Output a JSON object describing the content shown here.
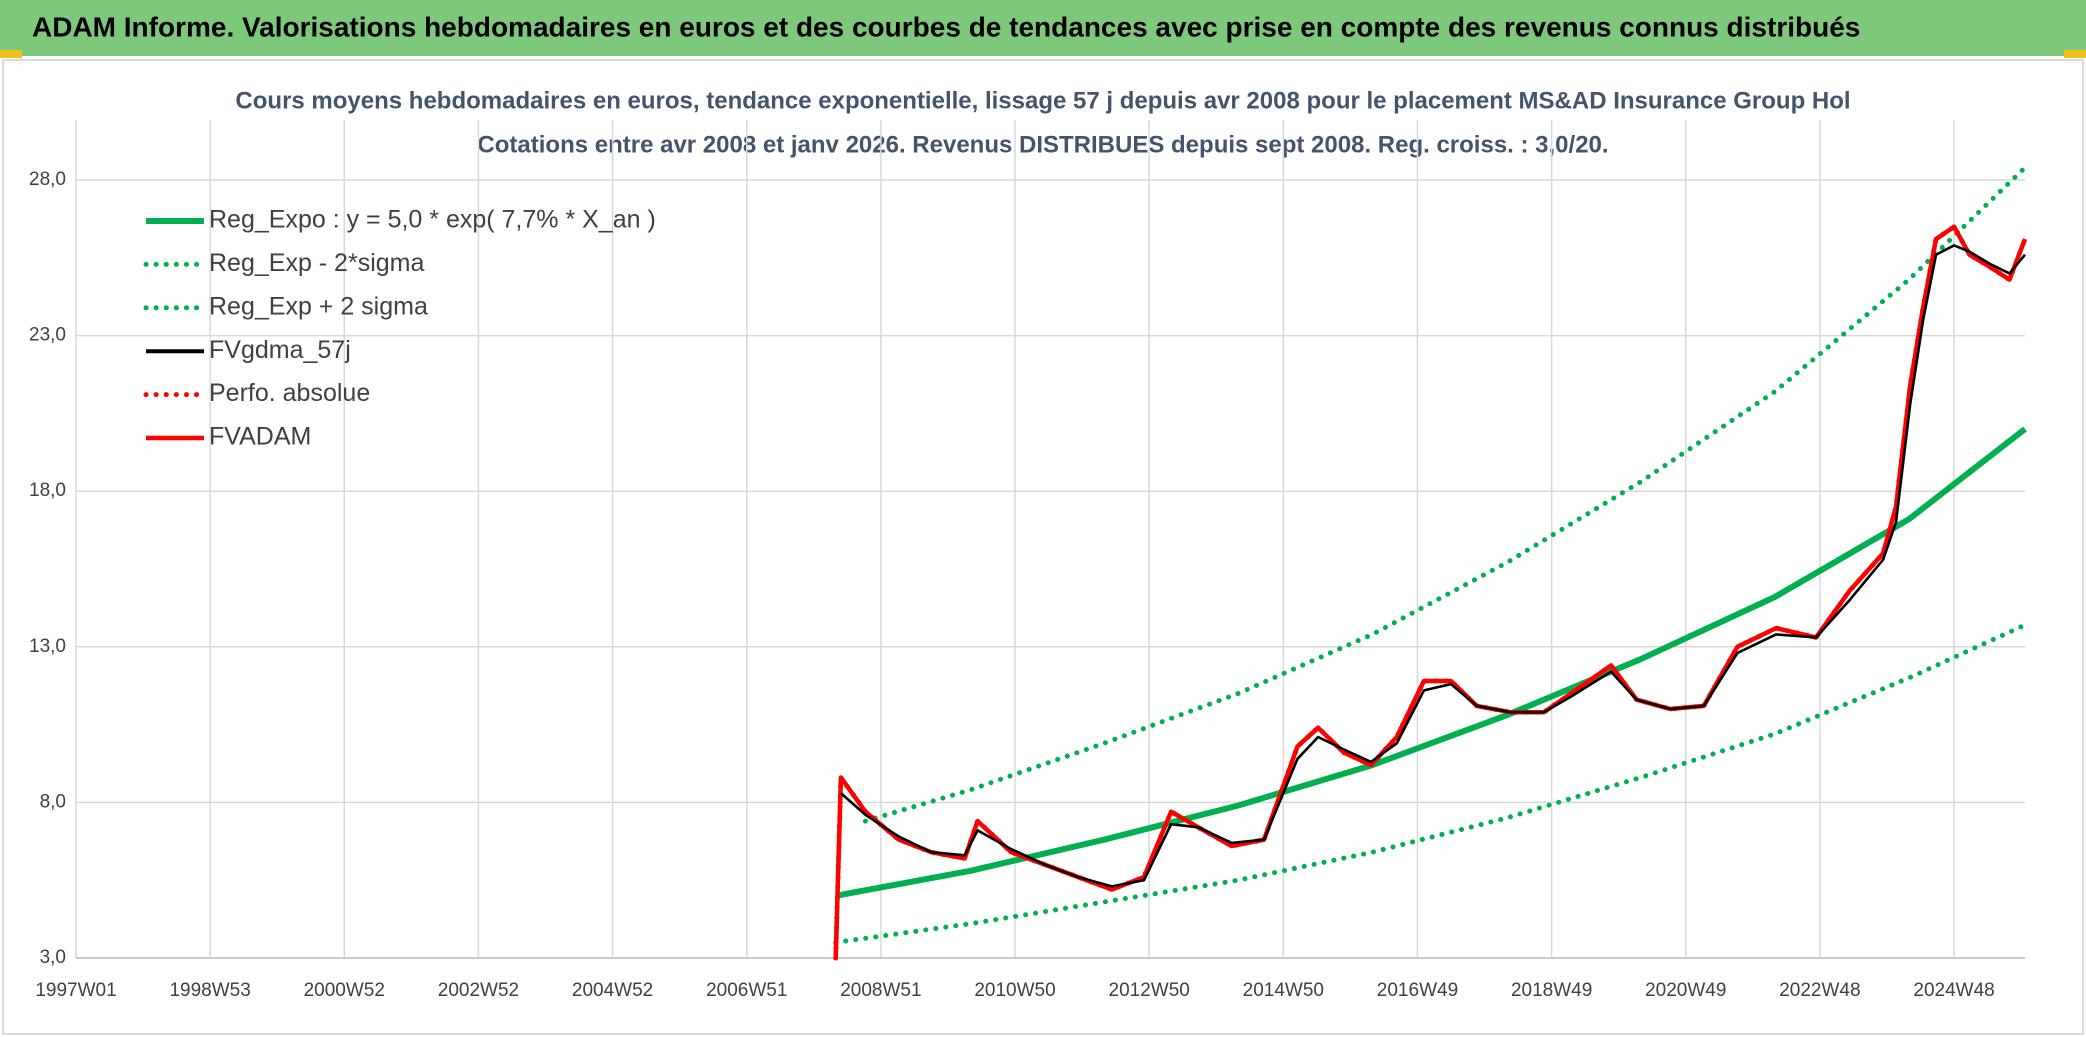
{
  "header": {
    "title": "ADAM Informe. Valorisations hebdomadaires en euros et des courbes de tendances avec prise en compte des revenus connus distribués"
  },
  "chart_data": {
    "type": "line",
    "title": "Cours moyens hebdomadaires en euros, tendance exponentielle, lissage 57 j depuis avr 2008 pour le placement MS&AD Insurance Group Hol",
    "subtitle": "Cotations entre avr 2008 et janv 2026. Revenus DISTRIBUES depuis sept 2008. Reg. croiss. : 3,0/20.",
    "xlim": [
      0,
      1511
    ],
    "xticks": [
      {
        "value": 0,
        "label": "1997W01"
      },
      {
        "value": 104,
        "label": "1998W53"
      },
      {
        "value": 208,
        "label": "2000W52"
      },
      {
        "value": 312,
        "label": "2002W52"
      },
      {
        "value": 416,
        "label": "2004W52"
      },
      {
        "value": 520,
        "label": "2006W51"
      },
      {
        "value": 624,
        "label": "2008W51"
      },
      {
        "value": 728,
        "label": "2010W50"
      },
      {
        "value": 832,
        "label": "2012W50"
      },
      {
        "value": 936,
        "label": "2014W50"
      },
      {
        "value": 1040,
        "label": "2016W49"
      },
      {
        "value": 1144,
        "label": "2018W49"
      },
      {
        "value": 1248,
        "label": "2020W49"
      },
      {
        "value": 1352,
        "label": "2022W48"
      },
      {
        "value": 1456,
        "label": "2024W48"
      }
    ],
    "ylim": [
      3,
      28
    ],
    "yticks": [
      {
        "value": 3,
        "label": "3,0"
      },
      {
        "value": 8,
        "label": "8,0"
      },
      {
        "value": 13,
        "label": "13,0"
      },
      {
        "value": 18,
        "label": "18,0"
      },
      {
        "value": 23,
        "label": "23,0"
      },
      {
        "value": 28,
        "label": "28,0"
      }
    ],
    "grid": true,
    "legend": "upper left",
    "series": [
      {
        "name": "Reg_Expo : y = 5,0 * exp( 7,7% *  X_an )",
        "color": "#00b050",
        "line_style": "solid",
        "x": [
          589,
          693,
          797,
          901,
          1005,
          1109,
          1213,
          1317,
          1421,
          1511
        ],
        "values": [
          5.0,
          5.8,
          6.8,
          7.9,
          9.2,
          10.8,
          12.6,
          14.6,
          17.1,
          20.0
        ]
      },
      {
        "name": "Reg_Exp - 2*sigma",
        "color": "#00b050",
        "line_style": "dotted",
        "x": [
          589,
          693,
          797,
          901,
          1005,
          1109,
          1213,
          1317,
          1421,
          1511
        ],
        "values": [
          3.5,
          4.1,
          4.8,
          5.5,
          6.4,
          7.5,
          8.8,
          10.2,
          12.0,
          13.7
        ]
      },
      {
        "name": "Reg_Exp + 2 sigma",
        "color": "#00b050",
        "line_style": "dotted",
        "x": [
          612,
          693,
          797,
          901,
          1005,
          1109,
          1213,
          1317,
          1421,
          1511
        ],
        "values": [
          7.4,
          8.4,
          9.9,
          11.5,
          13.4,
          15.7,
          18.3,
          21.2,
          24.8,
          28.4
        ]
      },
      {
        "name": "FVgdma_57j",
        "color": "#000000",
        "line_style": "solid",
        "x": [
          593,
          612,
          638,
          663,
          689,
          699,
          725,
          751,
          777,
          803,
          828,
          849,
          870,
          896,
          921,
          947,
          963,
          983,
          1004,
          1024,
          1045,
          1066,
          1086,
          1112,
          1138,
          1159,
          1190,
          1210,
          1236,
          1262,
          1288,
          1318,
          1349,
          1375,
          1401,
          1411,
          1422,
          1432,
          1442,
          1456,
          1468,
          1484,
          1499,
          1511
        ],
        "values": [
          8.3,
          7.6,
          6.9,
          6.4,
          6.3,
          7.1,
          6.5,
          6.0,
          5.6,
          5.3,
          5.5,
          7.3,
          7.2,
          6.7,
          6.8,
          9.4,
          10.1,
          9.7,
          9.3,
          9.9,
          11.6,
          11.8,
          11.1,
          10.9,
          10.9,
          11.4,
          12.2,
          11.3,
          11.0,
          11.1,
          12.8,
          13.4,
          13.3,
          14.5,
          15.8,
          17.0,
          20.8,
          23.5,
          25.6,
          25.9,
          25.7,
          25.3,
          25.0,
          25.6
        ]
      },
      {
        "name": "Perfo. absolue",
        "color": "#ff0000",
        "line_style": "dotted",
        "x": [
          589,
          593,
          612,
          638,
          663,
          689,
          699,
          725,
          751,
          777,
          803,
          828,
          849,
          870,
          896,
          921,
          947,
          963,
          983,
          1004,
          1024,
          1045,
          1066,
          1086,
          1112,
          1138,
          1159,
          1190,
          1210,
          1236,
          1262,
          1288,
          1318,
          1349,
          1375,
          1401,
          1411,
          1422,
          1432,
          1442,
          1456,
          1468,
          1484,
          1499,
          1511
        ],
        "values": [
          3.0,
          8.8,
          7.7,
          6.8,
          6.4,
          6.2,
          7.4,
          6.4,
          6.0,
          5.6,
          5.2,
          5.6,
          7.7,
          7.2,
          6.6,
          6.8,
          9.8,
          10.4,
          9.6,
          9.2,
          10.1,
          11.9,
          11.9,
          11.1,
          10.9,
          10.9,
          11.5,
          12.4,
          11.3,
          11.0,
          11.1,
          13.0,
          13.6,
          13.3,
          14.8,
          16.0,
          17.5,
          21.4,
          23.9,
          26.1,
          26.5,
          25.6,
          25.2,
          24.8,
          26.1
        ]
      },
      {
        "name": "FVADAM",
        "color": "#ff0000",
        "line_style": "solid",
        "x": [
          589,
          593,
          612,
          638,
          663,
          689,
          699,
          725,
          751,
          777,
          803,
          828,
          849,
          870,
          896,
          921,
          947,
          963,
          983,
          1004,
          1024,
          1045,
          1066,
          1086,
          1112,
          1138,
          1159,
          1190,
          1210,
          1236,
          1262,
          1288,
          1318,
          1349,
          1375,
          1401,
          1411,
          1422,
          1432,
          1442,
          1456,
          1468,
          1484,
          1499,
          1511
        ],
        "values": [
          3.0,
          8.8,
          7.7,
          6.8,
          6.4,
          6.2,
          7.4,
          6.4,
          6.0,
          5.6,
          5.2,
          5.6,
          7.7,
          7.2,
          6.6,
          6.8,
          9.8,
          10.4,
          9.6,
          9.2,
          10.1,
          11.9,
          11.9,
          11.1,
          10.9,
          10.9,
          11.5,
          12.4,
          11.3,
          11.0,
          11.1,
          13.0,
          13.6,
          13.3,
          14.8,
          16.0,
          17.5,
          21.4,
          23.9,
          26.1,
          26.5,
          25.6,
          25.2,
          24.8,
          26.1
        ]
      }
    ]
  }
}
